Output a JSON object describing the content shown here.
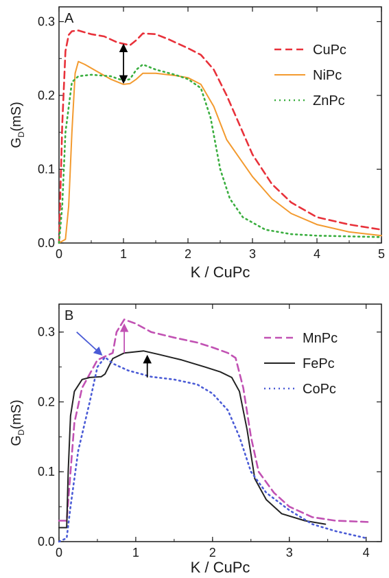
{
  "chart_data": [
    {
      "type": "line",
      "panel_label": "A",
      "xlabel": "K / CuPc",
      "ylabel": "G",
      "ylabel_sub": "D",
      "ylabel_unit": "(mS)",
      "xlim": [
        0,
        5
      ],
      "ylim": [
        0,
        0.32
      ],
      "xticks": [
        "0",
        "1",
        "2",
        "3",
        "4",
        "5"
      ],
      "yticks": [
        "0.0",
        "0.1",
        "0.2",
        "0.3"
      ],
      "legend_position": "top-right",
      "grid": false,
      "series": [
        {
          "name": "CuPc",
          "color": "#e8313a",
          "dash": "dashed",
          "points": [
            [
              0,
              0.0
            ],
            [
              0.05,
              0.16
            ],
            [
              0.1,
              0.26
            ],
            [
              0.15,
              0.282
            ],
            [
              0.2,
              0.287
            ],
            [
              0.3,
              0.288
            ],
            [
              0.5,
              0.283
            ],
            [
              0.7,
              0.28
            ],
            [
              0.9,
              0.272
            ],
            [
              1.0,
              0.27
            ],
            [
              1.1,
              0.268
            ],
            [
              1.2,
              0.275
            ],
            [
              1.3,
              0.284
            ],
            [
              1.5,
              0.283
            ],
            [
              1.7,
              0.276
            ],
            [
              2.0,
              0.264
            ],
            [
              2.2,
              0.255
            ],
            [
              2.4,
              0.235
            ],
            [
              2.6,
              0.2
            ],
            [
              2.8,
              0.16
            ],
            [
              3.0,
              0.12
            ],
            [
              3.3,
              0.08
            ],
            [
              3.6,
              0.055
            ],
            [
              4.0,
              0.035
            ],
            [
              4.5,
              0.025
            ],
            [
              5.0,
              0.018
            ]
          ]
        },
        {
          "name": "NiPc",
          "color": "#f39a2e",
          "dash": "solid",
          "points": [
            [
              0,
              0.0
            ],
            [
              0.1,
              0.005
            ],
            [
              0.15,
              0.05
            ],
            [
              0.2,
              0.15
            ],
            [
              0.25,
              0.23
            ],
            [
              0.3,
              0.246
            ],
            [
              0.4,
              0.242
            ],
            [
              0.6,
              0.232
            ],
            [
              0.8,
              0.222
            ],
            [
              1.0,
              0.215
            ],
            [
              1.1,
              0.216
            ],
            [
              1.2,
              0.222
            ],
            [
              1.3,
              0.23
            ],
            [
              1.5,
              0.23
            ],
            [
              1.8,
              0.227
            ],
            [
              2.0,
              0.224
            ],
            [
              2.2,
              0.215
            ],
            [
              2.4,
              0.185
            ],
            [
              2.6,
              0.14
            ],
            [
              2.8,
              0.115
            ],
            [
              3.0,
              0.09
            ],
            [
              3.3,
              0.06
            ],
            [
              3.6,
              0.04
            ],
            [
              4.0,
              0.025
            ],
            [
              4.5,
              0.015
            ],
            [
              5.0,
              0.01
            ]
          ]
        },
        {
          "name": "ZnPc",
          "color": "#3aae3f",
          "dash": "dotted",
          "points": [
            [
              0,
              0.0
            ],
            [
              0.05,
              0.05
            ],
            [
              0.1,
              0.15
            ],
            [
              0.2,
              0.218
            ],
            [
              0.3,
              0.226
            ],
            [
              0.5,
              0.228
            ],
            [
              0.8,
              0.226
            ],
            [
              1.0,
              0.22
            ],
            [
              1.1,
              0.222
            ],
            [
              1.2,
              0.235
            ],
            [
              1.3,
              0.242
            ],
            [
              1.5,
              0.235
            ],
            [
              1.8,
              0.228
            ],
            [
              2.0,
              0.222
            ],
            [
              2.2,
              0.21
            ],
            [
              2.35,
              0.17
            ],
            [
              2.5,
              0.1
            ],
            [
              2.65,
              0.06
            ],
            [
              2.85,
              0.035
            ],
            [
              3.2,
              0.018
            ],
            [
              3.6,
              0.012
            ],
            [
              4.0,
              0.01
            ],
            [
              5.0,
              0.008
            ]
          ]
        }
      ],
      "annotations": [
        {
          "kind": "double-arrow",
          "color": "#000000",
          "x": 1.0,
          "y_from": 0.218,
          "y_to": 0.268
        }
      ]
    },
    {
      "type": "line",
      "panel_label": "B",
      "xlabel": "K / CuPc",
      "ylabel": "G",
      "ylabel_sub": "D",
      "ylabel_unit": "(mS)",
      "xlim": [
        0,
        4.2
      ],
      "ylim": [
        0,
        0.34
      ],
      "xticks": [
        "0",
        "1",
        "2",
        "3",
        "4"
      ],
      "yticks": [
        "0.0",
        "0.1",
        "0.2",
        "0.3"
      ],
      "legend_position": "top-right",
      "grid": false,
      "series": [
        {
          "name": "MnPc",
          "color": "#c151b3",
          "dash": "dashed",
          "points": [
            [
              0,
              0.03
            ],
            [
              0.1,
              0.03
            ],
            [
              0.15,
              0.1
            ],
            [
              0.2,
              0.17
            ],
            [
              0.3,
              0.22
            ],
            [
              0.4,
              0.24
            ],
            [
              0.5,
              0.26
            ],
            [
              0.6,
              0.265
            ],
            [
              0.7,
              0.27
            ],
            [
              0.75,
              0.3
            ],
            [
              0.85,
              0.318
            ],
            [
              1.0,
              0.312
            ],
            [
              1.2,
              0.3
            ],
            [
              1.5,
              0.292
            ],
            [
              1.8,
              0.285
            ],
            [
              2.0,
              0.278
            ],
            [
              2.2,
              0.27
            ],
            [
              2.3,
              0.263
            ],
            [
              2.4,
              0.22
            ],
            [
              2.5,
              0.15
            ],
            [
              2.6,
              0.1
            ],
            [
              2.8,
              0.07
            ],
            [
              3.0,
              0.05
            ],
            [
              3.3,
              0.035
            ],
            [
              3.6,
              0.03
            ],
            [
              4.05,
              0.028
            ]
          ]
        },
        {
          "name": "FePc",
          "color": "#222222",
          "dash": "solid",
          "points": [
            [
              0,
              0.02
            ],
            [
              0.1,
              0.02
            ],
            [
              0.12,
              0.1
            ],
            [
              0.15,
              0.18
            ],
            [
              0.2,
              0.215
            ],
            [
              0.3,
              0.232
            ],
            [
              0.4,
              0.235
            ],
            [
              0.55,
              0.236
            ],
            [
              0.6,
              0.24
            ],
            [
              0.7,
              0.262
            ],
            [
              0.85,
              0.27
            ],
            [
              1.1,
              0.273
            ],
            [
              1.3,
              0.268
            ],
            [
              1.6,
              0.26
            ],
            [
              1.9,
              0.25
            ],
            [
              2.1,
              0.243
            ],
            [
              2.25,
              0.235
            ],
            [
              2.35,
              0.215
            ],
            [
              2.45,
              0.16
            ],
            [
              2.55,
              0.09
            ],
            [
              2.7,
              0.06
            ],
            [
              2.9,
              0.04
            ],
            [
              3.2,
              0.03
            ],
            [
              3.47,
              0.025
            ]
          ]
        },
        {
          "name": "CoPc",
          "color": "#4a5bd6",
          "dash": "dotted",
          "points": [
            [
              0,
              0.0
            ],
            [
              0.1,
              0.005
            ],
            [
              0.15,
              0.05
            ],
            [
              0.25,
              0.13
            ],
            [
              0.4,
              0.2
            ],
            [
              0.5,
              0.25
            ],
            [
              0.6,
              0.264
            ],
            [
              0.7,
              0.255
            ],
            [
              0.9,
              0.245
            ],
            [
              1.0,
              0.242
            ],
            [
              1.2,
              0.236
            ],
            [
              1.5,
              0.232
            ],
            [
              1.8,
              0.225
            ],
            [
              2.0,
              0.212
            ],
            [
              2.2,
              0.188
            ],
            [
              2.35,
              0.15
            ],
            [
              2.5,
              0.1
            ],
            [
              2.7,
              0.07
            ],
            [
              3.0,
              0.045
            ],
            [
              3.3,
              0.025
            ],
            [
              3.6,
              0.015
            ],
            [
              4.0,
              0.005
            ]
          ]
        }
      ],
      "annotations": [
        {
          "kind": "arrow",
          "color": "#4a5bd6",
          "x_from": 0.23,
          "y_from": 0.3,
          "x_to": 0.55,
          "y_to": 0.268
        },
        {
          "kind": "arrow",
          "color": "#c151b3",
          "x_from": 0.85,
          "y_from": 0.27,
          "x_to": 0.85,
          "y_to": 0.31
        },
        {
          "kind": "arrow",
          "color": "#000000",
          "x_from": 1.15,
          "y_from": 0.235,
          "x_to": 1.15,
          "y_to": 0.265
        }
      ]
    }
  ]
}
